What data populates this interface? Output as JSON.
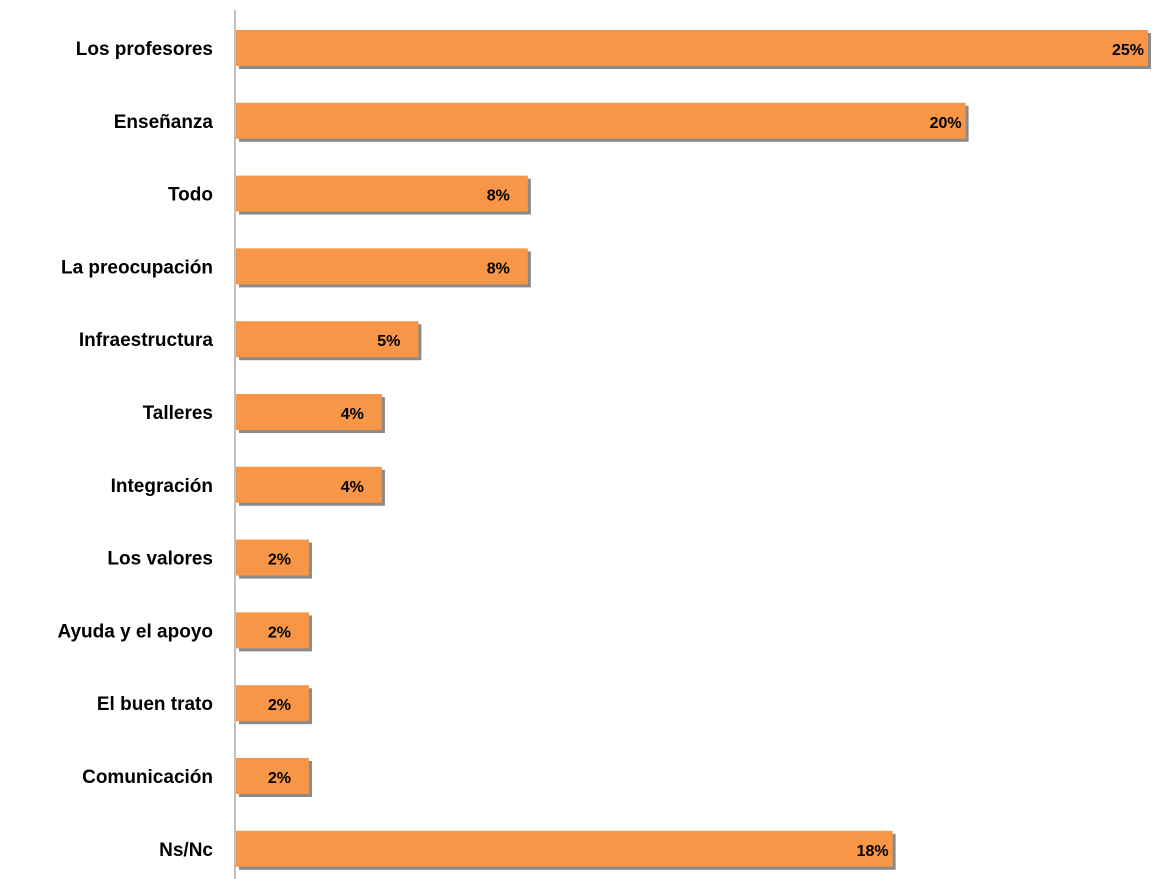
{
  "chart_data": {
    "type": "bar",
    "orientation": "horizontal",
    "categories": [
      "Los profesores",
      "Enseñanza",
      "Todo",
      "La preocupación",
      "Infraestructura",
      "Talleres",
      "Integración",
      "Los valores",
      "Ayuda y el apoyo",
      "El buen trato",
      "Comunicación",
      "Ns/Nc"
    ],
    "values": [
      25,
      20,
      8,
      8,
      5,
      4,
      4,
      2,
      2,
      2,
      2,
      18
    ],
    "value_labels": [
      "25%",
      "20%",
      "8%",
      "8%",
      "5%",
      "4%",
      "4%",
      "2%",
      "2%",
      "2%",
      "2%",
      "18%"
    ],
    "unit": "%",
    "xlim": [
      0,
      25
    ],
    "grid": false,
    "legend": "none",
    "colors": {
      "bar": "#F79646",
      "bar_shadow": "#8A8A8A",
      "axis": "#808080",
      "text": "#000000"
    }
  }
}
